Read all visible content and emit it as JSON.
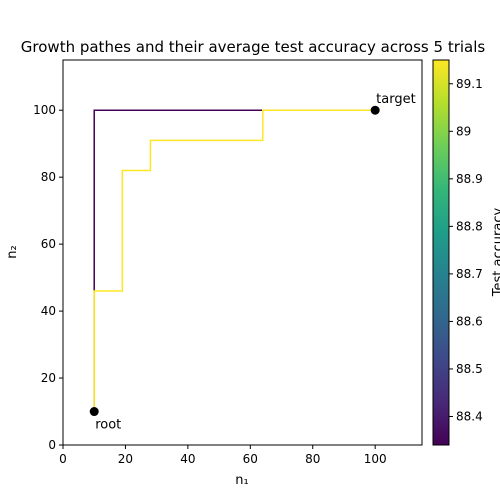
{
  "chart_data": {
    "type": "step_paths",
    "title": "Growth pathes and their average test accuracy across 5 trials",
    "xlabel": "n₁",
    "ylabel": "n₂",
    "xlim": [
      0,
      115
    ],
    "ylim": [
      0,
      115
    ],
    "xticks": [
      0,
      20,
      40,
      60,
      80,
      100
    ],
    "yticks": [
      0,
      20,
      40,
      60,
      80,
      100
    ],
    "colormap": "viridis",
    "colorbar": {
      "label": "Test accuracy",
      "lim": [
        88.34,
        89.15
      ],
      "ticks": [
        88.4,
        88.5,
        88.6,
        88.7,
        88.8,
        88.9,
        89.0,
        89.1
      ]
    },
    "series": [
      {
        "accuracy": 88.34,
        "x": [
          10,
          10,
          64,
          100
        ],
        "y": [
          10,
          100,
          100,
          100
        ]
      },
      {
        "accuracy": 89.15,
        "x": [
          10,
          10,
          19,
          19,
          28,
          28,
          64,
          64,
          100
        ],
        "y": [
          10,
          46,
          46,
          82,
          82,
          91,
          91,
          100,
          100
        ]
      }
    ],
    "points": [
      {
        "label": "root",
        "x": 10,
        "y": 10
      },
      {
        "label": "target",
        "x": 100,
        "y": 100
      }
    ]
  }
}
